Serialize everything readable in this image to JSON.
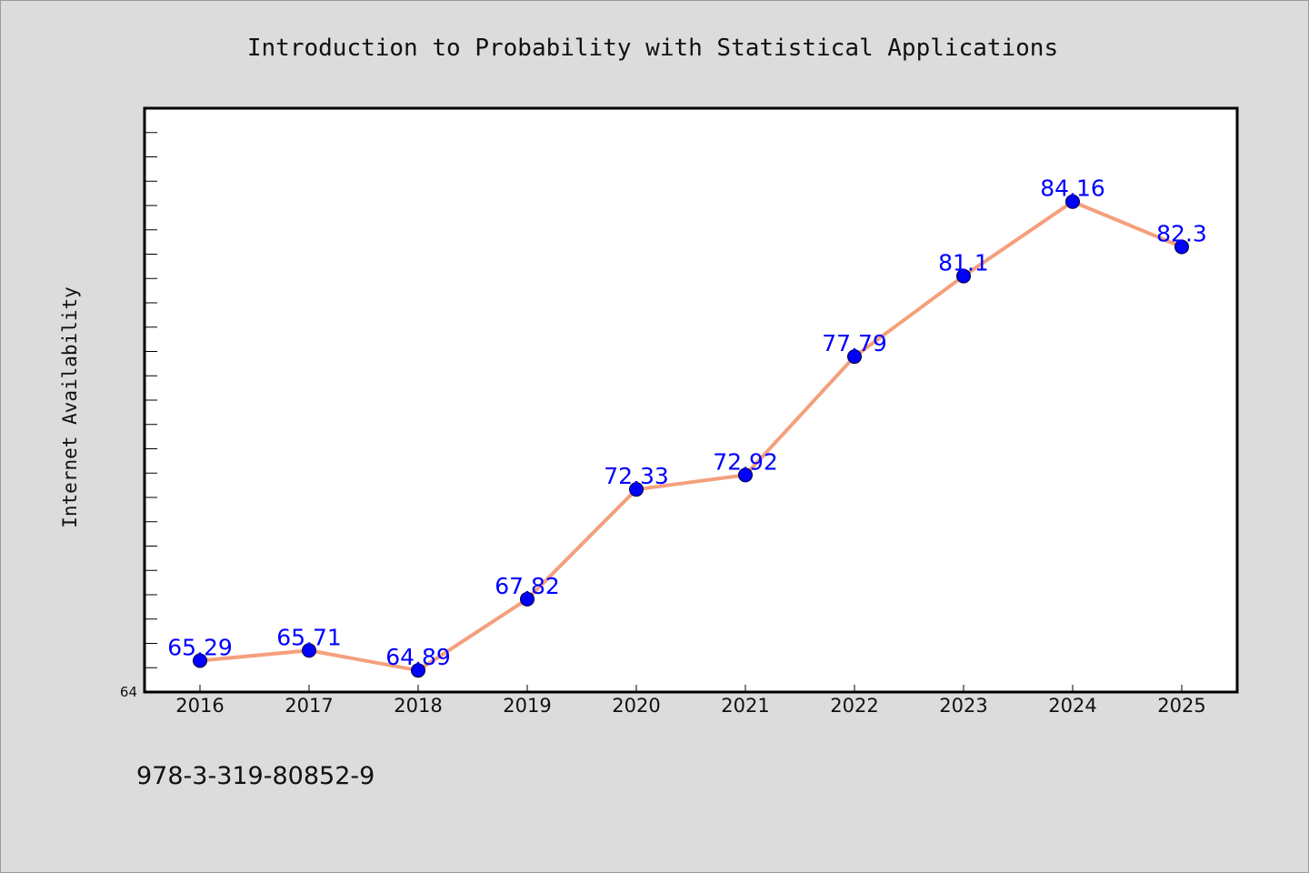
{
  "chart_data": {
    "type": "line",
    "title": "Introduction to Probability with Statistical Applications",
    "xlabel": "",
    "ylabel": "Internet Availability",
    "categories": [
      "2016",
      "2017",
      "2018",
      "2019",
      "2020",
      "2021",
      "2022",
      "2023",
      "2024",
      "2025"
    ],
    "values": [
      65.29,
      65.71,
      64.89,
      67.82,
      72.33,
      72.92,
      77.79,
      81.1,
      84.16,
      82.3
    ],
    "data_labels": [
      "65.29",
      "65.71",
      "64.89",
      "67.82",
      "72.33",
      "72.92",
      "77.79",
      "81.1",
      "84.16",
      "82.3"
    ],
    "ylim": [
      64,
      88
    ],
    "y_tick_labels": [
      "64"
    ],
    "grid": false,
    "line_color": "#f4a07c",
    "marker_color": "#0000ff",
    "label_color": "#0000ff",
    "plot_background": "#ffffff",
    "page_background": "#dcdcdc"
  },
  "footer": {
    "isbn": "978-3-319-80852-9"
  }
}
